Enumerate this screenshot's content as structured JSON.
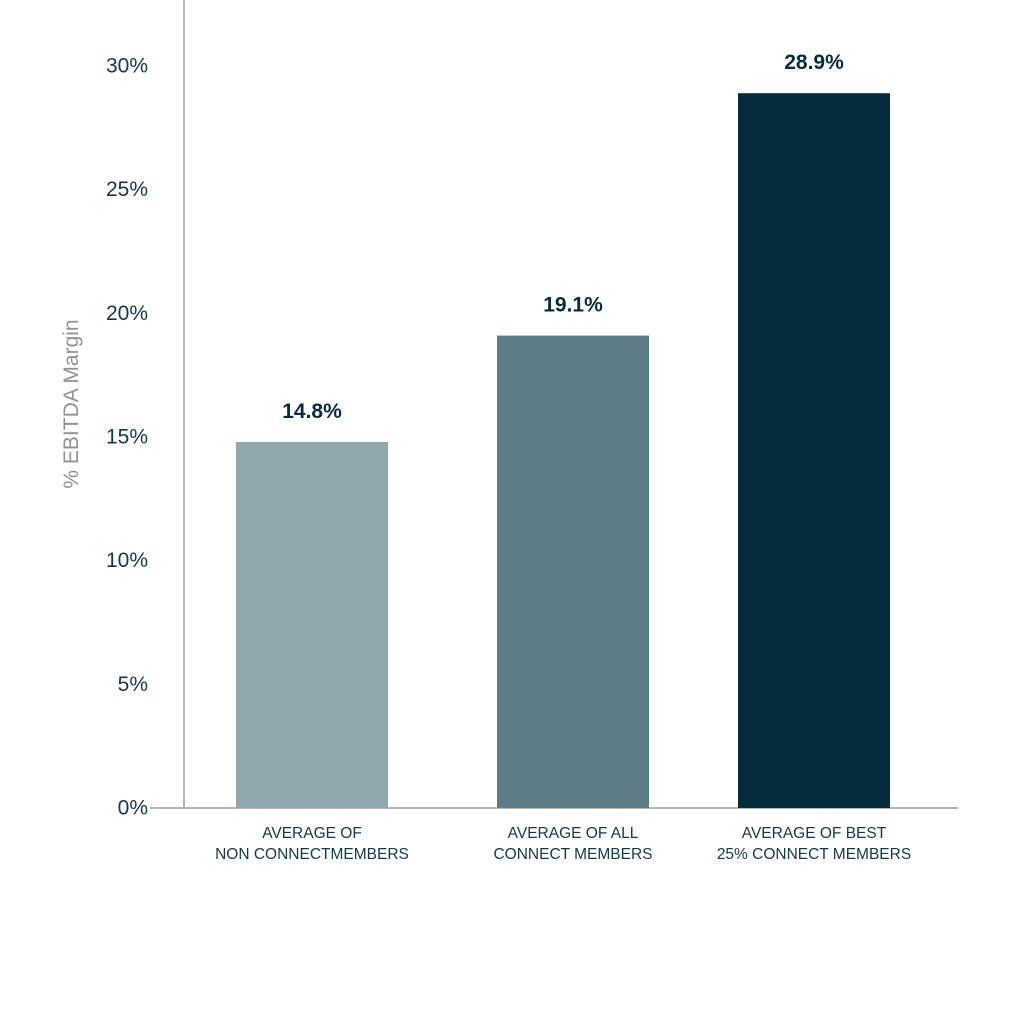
{
  "chart_data": {
    "type": "bar",
    "categories": [
      [
        "AVERAGE OF",
        "NON CONNECTMEMBERS"
      ],
      [
        "AVERAGE OF ALL",
        "CONNECT MEMBERS"
      ],
      [
        "AVERAGE OF BEST",
        "25% CONNECT MEMBERS"
      ]
    ],
    "values": [
      14.8,
      19.1,
      28.9
    ],
    "data_labels": [
      "14.8%",
      "19.1%",
      "28.9%"
    ],
    "bar_colors": [
      "#91a8ab",
      "#5e7c84",
      "#062b3c"
    ],
    "title": "",
    "xlabel": "",
    "ylabel": "% EBITDA Margin",
    "ylim": [
      0,
      30
    ],
    "yticks": [
      0,
      5,
      10,
      15,
      20,
      25,
      30
    ],
    "ytick_labels": [
      "0%",
      "5%",
      "10%",
      "15%",
      "20%",
      "25%",
      "30%"
    ],
    "grid": false,
    "legend": "none"
  }
}
